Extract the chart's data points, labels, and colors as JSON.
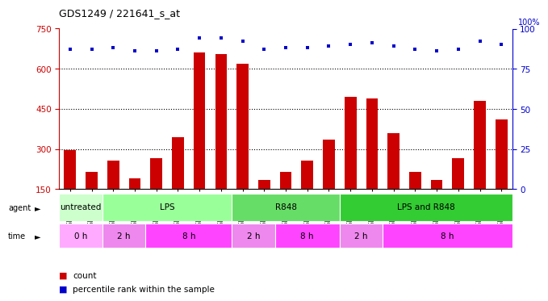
{
  "title": "GDS1249 / 221641_s_at",
  "samples": [
    "GSM52346",
    "GSM52353",
    "GSM52360",
    "GSM52340",
    "GSM52347",
    "GSM52354",
    "GSM52343",
    "GSM52350",
    "GSM52357",
    "GSM52341",
    "GSM52348",
    "GSM52355",
    "GSM52344",
    "GSM52351",
    "GSM52358",
    "GSM52342",
    "GSM52349",
    "GSM52356",
    "GSM52345",
    "GSM52352",
    "GSM52359"
  ],
  "counts": [
    295,
    215,
    255,
    190,
    265,
    345,
    660,
    655,
    620,
    185,
    215,
    255,
    335,
    495,
    490,
    360,
    215,
    185,
    265,
    480,
    410
  ],
  "percentiles": [
    87,
    87,
    88,
    86,
    86,
    87,
    94,
    94,
    92,
    87,
    88,
    88,
    89,
    90,
    91,
    89,
    87,
    86,
    87,
    92,
    90
  ],
  "ylim_left": [
    150,
    750
  ],
  "ylim_right": [
    0,
    100
  ],
  "yticks_left": [
    150,
    300,
    450,
    600,
    750
  ],
  "yticks_right": [
    0,
    25,
    50,
    75,
    100
  ],
  "bar_color": "#cc0000",
  "dot_color": "#0000cc",
  "bg_color": "#ffffff",
  "agent_groups": [
    {
      "label": "untreated",
      "start": 0,
      "end": 1,
      "color": "#ccffcc"
    },
    {
      "label": "LPS",
      "start": 2,
      "end": 7,
      "color": "#99ff99"
    },
    {
      "label": "R848",
      "start": 8,
      "end": 12,
      "color": "#66dd66"
    },
    {
      "label": "LPS and R848",
      "start": 13,
      "end": 20,
      "color": "#33cc33"
    }
  ],
  "time_groups": [
    {
      "label": "0 h",
      "start": 0,
      "end": 1,
      "color": "#ffaaff"
    },
    {
      "label": "2 h",
      "start": 2,
      "end": 3,
      "color": "#ee88ee"
    },
    {
      "label": "8 h",
      "start": 4,
      "end": 7,
      "color": "#ff44ff"
    },
    {
      "label": "2 h",
      "start": 8,
      "end": 9,
      "color": "#ee88ee"
    },
    {
      "label": "8 h",
      "start": 10,
      "end": 12,
      "color": "#ff44ff"
    },
    {
      "label": "2 h",
      "start": 13,
      "end": 14,
      "color": "#ee88ee"
    },
    {
      "label": "8 h",
      "start": 15,
      "end": 20,
      "color": "#ff44ff"
    }
  ]
}
